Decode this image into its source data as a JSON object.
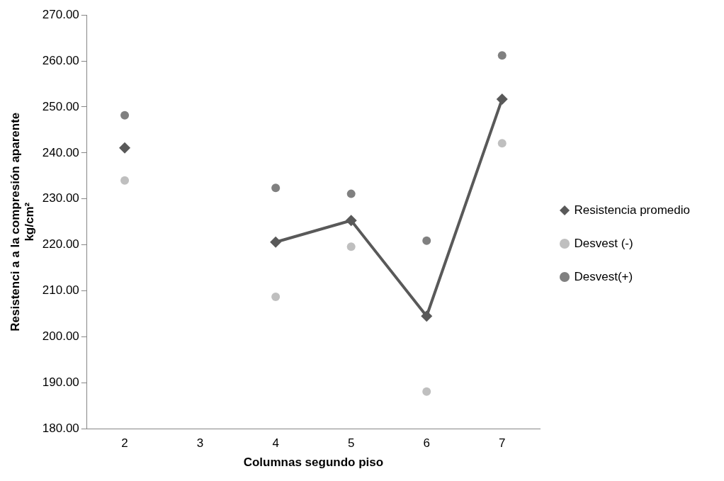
{
  "chart_data": {
    "type": "line",
    "xlabel": "Columnas segundo piso",
    "ylabel": "Resistenci a a la compresión aparente\nkg/cm²",
    "categories": [
      "2",
      "3",
      "4",
      "5",
      "6",
      "7"
    ],
    "ylim": [
      180,
      270
    ],
    "yticks": [
      {
        "value": 180,
        "label": "180.00"
      },
      {
        "value": 190,
        "label": "190.00"
      },
      {
        "value": 200,
        "label": "200.00"
      },
      {
        "value": 210,
        "label": "210.00"
      },
      {
        "value": 220,
        "label": "220.00"
      },
      {
        "value": 230,
        "label": "230.00"
      },
      {
        "value": 240,
        "label": "240.00"
      },
      {
        "value": 250,
        "label": "250.00"
      },
      {
        "value": 260,
        "label": "260.00"
      },
      {
        "value": 270,
        "label": "270.00"
      }
    ],
    "grid": false,
    "legend": "right",
    "series": [
      {
        "name": "Resistencia promedio",
        "marker": "diamond",
        "line_style": "solid",
        "color": "#595959",
        "values": [
          241.1,
          null,
          220.6,
          225.3,
          204.5,
          251.7
        ]
      },
      {
        "name": "Desvest (-)",
        "type": "scatter",
        "marker": "circle",
        "color": "#bfbfbf",
        "values": [
          234.0,
          null,
          208.7,
          219.6,
          188.1,
          242.1
        ]
      },
      {
        "name": "Desvest(+)",
        "type": "scatter",
        "marker": "circle",
        "color": "#808080",
        "values": [
          248.2,
          null,
          232.4,
          231.1,
          220.9,
          261.2
        ]
      }
    ]
  }
}
